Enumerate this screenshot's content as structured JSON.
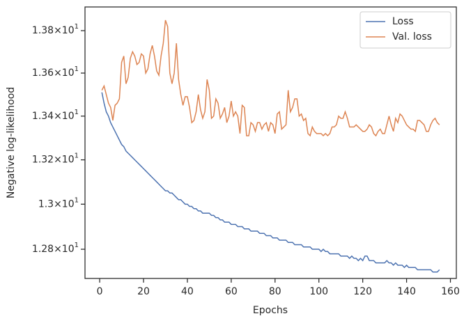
{
  "chart_data": {
    "type": "line",
    "xlabel": "Epochs",
    "ylabel": "Negative log-likelihood",
    "log_y": true,
    "grid": false,
    "legend": "upper right",
    "xlim": [
      -6.7,
      162.7
    ],
    "xticks": [
      0,
      20,
      40,
      60,
      80,
      100,
      120,
      140,
      160
    ],
    "ylim": [
      12.672,
      13.913
    ],
    "yticks": [
      {
        "value": 12.8,
        "label": "1.28×10^1"
      },
      {
        "value": 13.0,
        "label": "1.3×10^1"
      },
      {
        "value": 13.2,
        "label": "1.32×10^1"
      },
      {
        "value": 13.4,
        "label": "1.34×10^1"
      },
      {
        "value": 13.6,
        "label": "1.36×10^1"
      },
      {
        "value": 13.8,
        "label": "1.38×10^1"
      }
    ],
    "x": [
      1,
      2,
      3,
      4,
      5,
      6,
      7,
      8,
      9,
      10,
      11,
      12,
      13,
      14,
      15,
      16,
      17,
      18,
      19,
      20,
      21,
      22,
      23,
      24,
      25,
      26,
      27,
      28,
      29,
      30,
      31,
      32,
      33,
      34,
      35,
      36,
      37,
      38,
      39,
      40,
      41,
      42,
      43,
      44,
      45,
      46,
      47,
      48,
      49,
      50,
      51,
      52,
      53,
      54,
      55,
      56,
      57,
      58,
      59,
      60,
      61,
      62,
      63,
      64,
      65,
      66,
      67,
      68,
      69,
      70,
      71,
      72,
      73,
      74,
      75,
      76,
      77,
      78,
      79,
      80,
      81,
      82,
      83,
      84,
      85,
      86,
      87,
      88,
      89,
      90,
      91,
      92,
      93,
      94,
      95,
      96,
      97,
      98,
      99,
      100,
      101,
      102,
      103,
      104,
      105,
      106,
      107,
      108,
      109,
      110,
      111,
      112,
      113,
      114,
      115,
      116,
      117,
      118,
      119,
      120,
      121,
      122,
      123,
      124,
      125,
      126,
      127,
      128,
      129,
      130,
      131,
      132,
      133,
      134,
      135,
      136,
      137,
      138,
      139,
      140,
      141,
      142,
      143,
      144,
      145,
      146,
      147,
      148,
      149,
      150,
      151,
      152,
      153,
      154,
      155
    ],
    "series": [
      {
        "name": "Loss",
        "color": "#4c72b0",
        "values": [
          13.51,
          13.46,
          13.42,
          13.4,
          13.37,
          13.35,
          13.33,
          13.31,
          13.29,
          13.27,
          13.26,
          13.24,
          13.23,
          13.22,
          13.21,
          13.2,
          13.19,
          13.18,
          13.17,
          13.16,
          13.15,
          13.14,
          13.13,
          13.12,
          13.11,
          13.1,
          13.09,
          13.08,
          13.07,
          13.06,
          13.06,
          13.05,
          13.05,
          13.04,
          13.03,
          13.02,
          13.02,
          13.01,
          13.0,
          13.0,
          12.99,
          12.99,
          12.98,
          12.98,
          12.97,
          12.97,
          12.96,
          12.96,
          12.96,
          12.96,
          12.95,
          12.95,
          12.94,
          12.94,
          12.93,
          12.93,
          12.92,
          12.92,
          12.92,
          12.91,
          12.91,
          12.91,
          12.9,
          12.9,
          12.9,
          12.89,
          12.89,
          12.89,
          12.88,
          12.88,
          12.88,
          12.88,
          12.87,
          12.87,
          12.87,
          12.86,
          12.86,
          12.86,
          12.85,
          12.85,
          12.85,
          12.84,
          12.84,
          12.84,
          12.84,
          12.83,
          12.83,
          12.83,
          12.82,
          12.82,
          12.82,
          12.82,
          12.81,
          12.81,
          12.81,
          12.81,
          12.8,
          12.8,
          12.8,
          12.8,
          12.79,
          12.8,
          12.79,
          12.79,
          12.78,
          12.78,
          12.78,
          12.78,
          12.78,
          12.77,
          12.77,
          12.77,
          12.77,
          12.76,
          12.77,
          12.76,
          12.76,
          12.75,
          12.76,
          12.75,
          12.77,
          12.77,
          12.75,
          12.75,
          12.75,
          12.74,
          12.74,
          12.74,
          12.74,
          12.74,
          12.75,
          12.74,
          12.74,
          12.73,
          12.74,
          12.73,
          12.73,
          12.73,
          12.72,
          12.73,
          12.72,
          12.72,
          12.72,
          12.72,
          12.71,
          12.71,
          12.71,
          12.71,
          12.71,
          12.71,
          12.71,
          12.7,
          12.7,
          12.7,
          12.71
        ]
      },
      {
        "name": "Val. loss",
        "color": "#dd8452",
        "values": [
          13.52,
          13.54,
          13.5,
          13.46,
          13.44,
          13.38,
          13.45,
          13.46,
          13.48,
          13.65,
          13.68,
          13.55,
          13.58,
          13.67,
          13.7,
          13.68,
          13.64,
          13.65,
          13.69,
          13.68,
          13.6,
          13.62,
          13.69,
          13.73,
          13.68,
          13.61,
          13.59,
          13.68,
          13.74,
          13.85,
          13.82,
          13.6,
          13.55,
          13.6,
          13.74,
          13.57,
          13.5,
          13.45,
          13.49,
          13.49,
          13.44,
          13.37,
          13.38,
          13.42,
          13.5,
          13.43,
          13.39,
          13.42,
          13.57,
          13.52,
          13.39,
          13.4,
          13.48,
          13.46,
          13.39,
          13.41,
          13.44,
          13.37,
          13.4,
          13.47,
          13.4,
          13.42,
          13.4,
          13.32,
          13.45,
          13.44,
          13.31,
          13.31,
          13.37,
          13.36,
          13.33,
          13.37,
          13.37,
          13.34,
          13.36,
          13.37,
          13.33,
          13.37,
          13.36,
          13.32,
          13.41,
          13.42,
          13.34,
          13.35,
          13.36,
          13.52,
          13.42,
          13.44,
          13.48,
          13.48,
          13.4,
          13.41,
          13.38,
          13.39,
          13.32,
          13.31,
          13.35,
          13.33,
          13.32,
          13.32,
          13.32,
          13.31,
          13.32,
          13.31,
          13.32,
          13.35,
          13.35,
          13.36,
          13.4,
          13.39,
          13.39,
          13.42,
          13.39,
          13.35,
          13.35,
          13.35,
          13.36,
          13.35,
          13.34,
          13.33,
          13.33,
          13.34,
          13.36,
          13.35,
          13.32,
          13.31,
          13.33,
          13.34,
          13.32,
          13.32,
          13.36,
          13.4,
          13.36,
          13.33,
          13.39,
          13.37,
          13.41,
          13.4,
          13.38,
          13.36,
          13.35,
          13.34,
          13.34,
          13.33,
          13.38,
          13.38,
          13.37,
          13.36,
          13.33,
          13.33,
          13.36,
          13.38,
          13.39,
          13.37,
          13.36
        ]
      }
    ]
  }
}
